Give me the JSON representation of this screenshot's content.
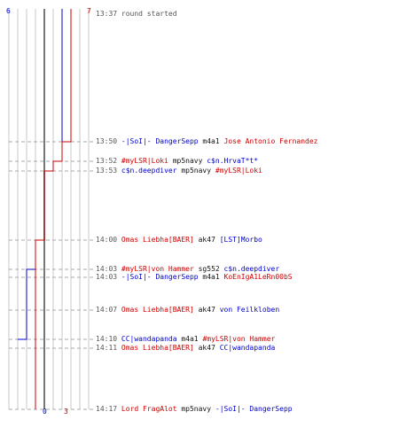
{
  "colors": {
    "blue_team": "#0000cc",
    "red_team": "#cc0000",
    "timestamp": "#555555",
    "weapon": "#111111",
    "grid": "#c8c8c8",
    "center": "#777777",
    "dash": "#aaaaaa"
  },
  "scores": {
    "blue_start": "6",
    "red_start": "7",
    "blue_end": "0",
    "red_end": "3"
  },
  "chart_data": {
    "type": "line",
    "series": [
      {
        "team": "blue",
        "points": [
          [
            0,
            6
          ],
          [
            2,
            5
          ],
          [
            3,
            4
          ],
          [
            4,
            3
          ],
          [
            5,
            2
          ],
          [
            8,
            1
          ],
          [
            11,
            0
          ]
        ]
      },
      {
        "team": "red",
        "points": [
          [
            0,
            7
          ],
          [
            1,
            6
          ],
          [
            2,
            5
          ],
          [
            3,
            4
          ],
          [
            4,
            3
          ]
        ]
      }
    ]
  },
  "events": [
    {
      "time": "13:37",
      "parts": [
        {
          "text": "round started",
          "color": "gray"
        }
      ]
    },
    {
      "time": "13:50",
      "parts": [
        {
          "text": "-|SoI|- DangerSepp",
          "color": "blue"
        },
        {
          "text": "m4a1",
          "color": "black"
        },
        {
          "text": "Jose Antonio Fernandez",
          "color": "red"
        }
      ]
    },
    {
      "time": "13:52",
      "parts": [
        {
          "text": "#myLSR|Loki",
          "color": "red"
        },
        {
          "text": "mp5navy",
          "color": "black"
        },
        {
          "text": "c$n.HrvaT*t*",
          "color": "blue"
        }
      ]
    },
    {
      "time": "13:53",
      "parts": [
        {
          "text": "c$n.deepdiver",
          "color": "blue"
        },
        {
          "text": "mp5navy",
          "color": "black"
        },
        {
          "text": "#myLSR|Loki",
          "color": "red"
        }
      ]
    },
    {
      "time": "14:00",
      "parts": [
        {
          "text": "Omas Liebha[BAER]",
          "color": "red"
        },
        {
          "text": "ak47",
          "color": "black"
        },
        {
          "text": "[LST]Morbo",
          "color": "blue"
        }
      ]
    },
    {
      "time": "14:03",
      "parts": [
        {
          "text": "#myLSR|von Hammer",
          "color": "red"
        },
        {
          "text": "sg552",
          "color": "black"
        },
        {
          "text": "c$n.deepdiver",
          "color": "blue"
        }
      ]
    },
    {
      "time": "14:03",
      "parts": [
        {
          "text": "-|SoI|- DangerSepp",
          "color": "blue"
        },
        {
          "text": "m4a1",
          "color": "black"
        },
        {
          "text": "KoEnIgA1LeRn00bS",
          "color": "red"
        }
      ]
    },
    {
      "time": "14:07",
      "parts": [
        {
          "text": "Omas Liebha[BAER]",
          "color": "red"
        },
        {
          "text": "ak47",
          "color": "black"
        },
        {
          "text": "von Feilkloben",
          "color": "blue"
        }
      ]
    },
    {
      "time": "14:10",
      "parts": [
        {
          "text": "CC|wandapanda",
          "color": "blue"
        },
        {
          "text": "m4a1",
          "color": "black"
        },
        {
          "text": "#myLSR|von Hammer",
          "color": "red"
        }
      ]
    },
    {
      "time": "14:11",
      "parts": [
        {
          "text": "Omas Liebha[BAER]",
          "color": "red"
        },
        {
          "text": "ak47",
          "color": "black"
        },
        {
          "text": "CC|wandapanda",
          "color": "blue"
        }
      ]
    },
    {
      "time": "14:17",
      "parts": [
        {
          "text": "Lord FragAlot",
          "color": "red"
        },
        {
          "text": "mp5navy",
          "color": "black"
        },
        {
          "text": "-|SoI|- DangerSepp",
          "color": "blue"
        }
      ]
    }
  ]
}
